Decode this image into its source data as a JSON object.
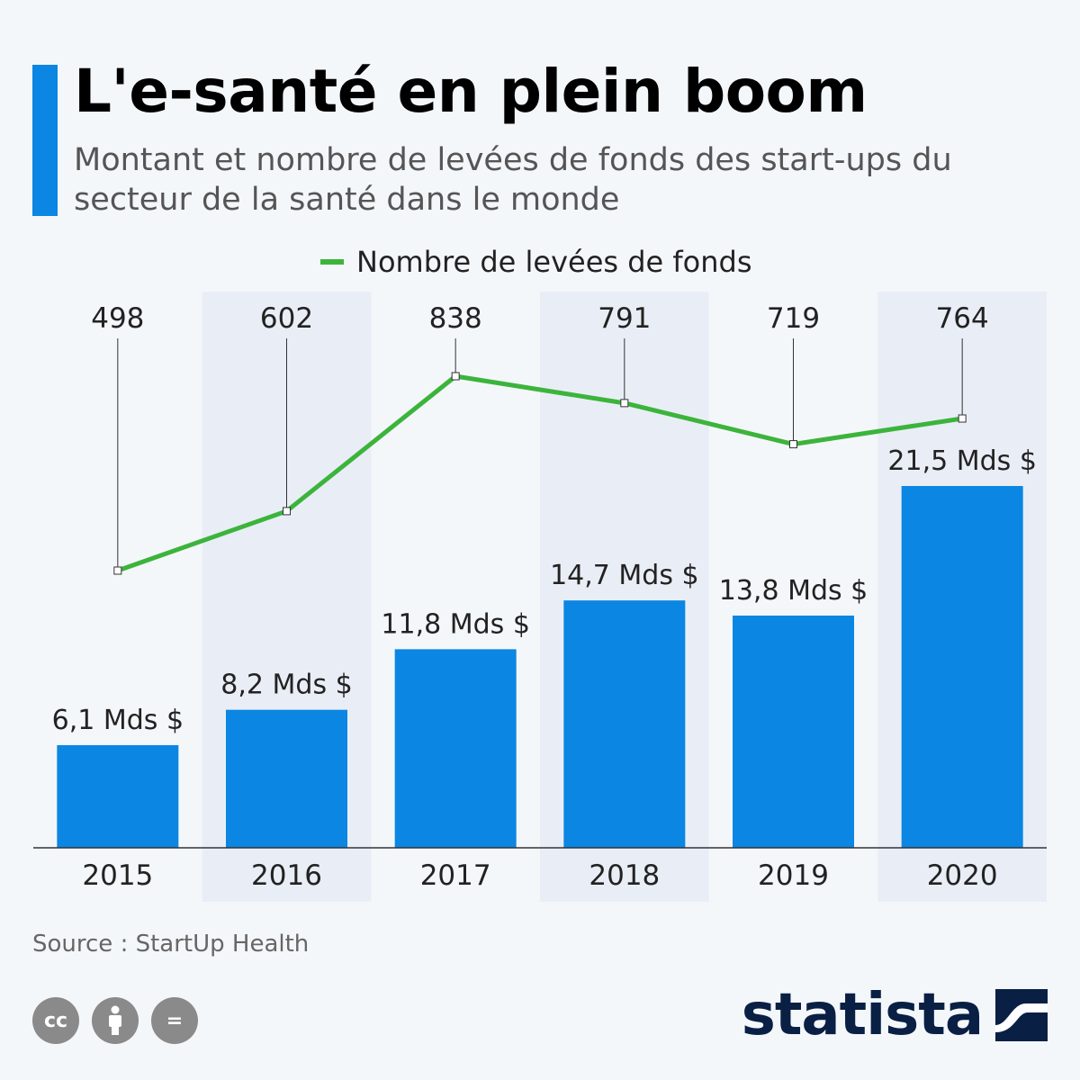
{
  "header": {
    "title": "L'e-santé en plein boom",
    "subtitle": "Montant et nombre de levées de fonds des start-ups du secteur de la santé dans le monde"
  },
  "chart_data": {
    "type": "bar",
    "categories": [
      "2015",
      "2016",
      "2017",
      "2018",
      "2019",
      "2020"
    ],
    "series": [
      {
        "type": "bar",
        "values": [
          6.1,
          8.2,
          11.8,
          14.7,
          13.8,
          21.5
        ],
        "labels": [
          "6,1 Mds $",
          "8,2 Mds $",
          "11,8 Mds $",
          "14,7 Mds $",
          "13,8 Mds $",
          "21,5 Mds $"
        ],
        "color": "#0b86e3"
      },
      {
        "name": "Nombre de levées de fonds",
        "type": "line",
        "values": [
          498,
          602,
          838,
          791,
          719,
          764
        ],
        "labels": [
          "498",
          "602",
          "838",
          "791",
          "719",
          "764"
        ],
        "color": "#3cb43c"
      }
    ],
    "legend": "top-center",
    "grid": false
  },
  "source": "Source : StartUp Health",
  "license_icons": [
    {
      "name": "cc-icon",
      "text": "cc"
    },
    {
      "name": "attribution-icon",
      "text": ""
    },
    {
      "name": "no-derivatives-icon",
      "text": "="
    }
  ],
  "brand": "statista",
  "colors": {
    "accent": "#0b86e3",
    "line": "#3cb43c",
    "band": "#e9eef6"
  }
}
